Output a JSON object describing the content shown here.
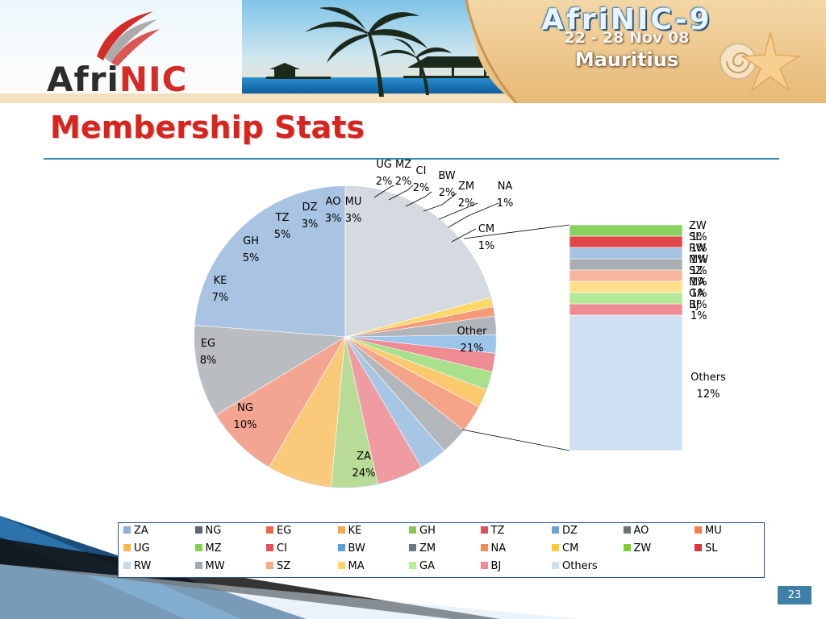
{
  "branding": {
    "logo_prefix": "Afri",
    "logo_suffix": "NIC",
    "conference_title": "AfriNIC-9",
    "conference_dates": "22 - 28 Nov 08",
    "conference_location": "Mauritius"
  },
  "page": {
    "title": "Membership Stats",
    "number": "23"
  },
  "colors": {
    "title": "#d9231d",
    "rule": "#2f8db0",
    "legend_border": "#2a4f9c",
    "page_number_bg": "#3f80a8"
  },
  "chart_data": {
    "type": "bar-of-pie",
    "title": "",
    "pie": {
      "slices": [
        {
          "category": "ZA",
          "label": "ZA",
          "value_text": "24%",
          "value": 24,
          "color": "#a8c4e2"
        },
        {
          "category": "NG",
          "label": "NG",
          "value_text": "10%",
          "value": 10,
          "color": "#b9bcc0"
        },
        {
          "category": "EG",
          "label": "EG",
          "value_text": "8%",
          "value": 8,
          "color": "#f4a592"
        },
        {
          "category": "KE",
          "label": "KE",
          "value_text": "7%",
          "value": 7,
          "color": "#fbc97a"
        },
        {
          "category": "GH",
          "label": "GH",
          "value_text": "5%",
          "value": 5,
          "color": "#b8dc98"
        },
        {
          "category": "TZ",
          "label": "TZ",
          "value_text": "5%",
          "value": 5,
          "color": "#ef9ba1"
        },
        {
          "category": "DZ",
          "label": "DZ",
          "value_text": "3%",
          "value": 3,
          "color": "#a7c6e6"
        },
        {
          "category": "AO",
          "label": "AO",
          "value_text": "3%",
          "value": 3,
          "color": "#b3b7bc"
        },
        {
          "category": "MU",
          "label": "MU",
          "value_text": "3%",
          "value": 3,
          "color": "#f5a487"
        },
        {
          "category": "UG",
          "label": "UG",
          "value_text": "2%",
          "value": 2,
          "color": "#fbc96e"
        },
        {
          "category": "MZ",
          "label": "MZ",
          "value_text": "2%",
          "value": 2,
          "color": "#a8e08c"
        },
        {
          "category": "CI",
          "label": "CI",
          "value_text": "2%",
          "value": 2,
          "color": "#ee8b93"
        },
        {
          "category": "BW",
          "label": "BW",
          "value_text": "2%",
          "value": 2,
          "color": "#9dc5ea"
        },
        {
          "category": "ZM",
          "label": "ZM",
          "value_text": "2%",
          "value": 2,
          "color": "#b0b5bb"
        },
        {
          "category": "NA",
          "label": "NA",
          "value_text": "1%",
          "value": 1,
          "color": "#f49a78"
        },
        {
          "category": "CM",
          "label": "CM",
          "value_text": "1%",
          "value": 1,
          "color": "#fdd767"
        },
        {
          "category": "Other",
          "label": "Other",
          "value_text": "21%",
          "value": 21,
          "color": "#d5dae0"
        }
      ]
    },
    "bar": {
      "segments": [
        {
          "category": "Others",
          "label": "Others",
          "value_text": "12%",
          "value": 12,
          "color": "#cfe0f2"
        },
        {
          "category": "BJ",
          "label": "BJ",
          "value_text": "1%",
          "value": 1,
          "color": "#ee8c92"
        },
        {
          "category": "GA",
          "label": "GA",
          "value_text": "1%",
          "value": 1,
          "color": "#b4ea96"
        },
        {
          "category": "MA",
          "label": "MA",
          "value_text": "1%",
          "value": 1,
          "color": "#ffe08a"
        },
        {
          "category": "SZ",
          "label": "SZ",
          "value_text": "1%",
          "value": 1,
          "color": "#f8b49d"
        },
        {
          "category": "MW",
          "label": "MW",
          "value_text": "1%",
          "value": 1,
          "color": "#a9aeb5"
        },
        {
          "category": "RW",
          "label": "RW",
          "value_text": "1%",
          "value": 1,
          "color": "#a5c2e2"
        },
        {
          "category": "SL",
          "label": "SL",
          "value_text": "1%",
          "value": 1,
          "color": "#e0464b"
        },
        {
          "category": "ZW",
          "label": "ZW",
          "value_text": "1%",
          "value": 1,
          "color": "#8ad160"
        }
      ]
    },
    "legend": {
      "placement": "bottom",
      "entries": [
        {
          "name": "ZA",
          "color": "#8fb0d6"
        },
        {
          "name": "NG",
          "color": "#5d6670"
        },
        {
          "name": "EG",
          "color": "#e96a4b"
        },
        {
          "name": "KE",
          "color": "#f5a94a"
        },
        {
          "name": "GH",
          "color": "#8dc45c"
        },
        {
          "name": "TZ",
          "color": "#d9535a"
        },
        {
          "name": "DZ",
          "color": "#6fa3d4"
        },
        {
          "name": "AO",
          "color": "#6c7378"
        },
        {
          "name": "MU",
          "color": "#f08050"
        },
        {
          "name": "UG",
          "color": "#fbb848"
        },
        {
          "name": "MZ",
          "color": "#7fd24a"
        },
        {
          "name": "CI",
          "color": "#e2505a"
        },
        {
          "name": "BW",
          "color": "#5ba0e0"
        },
        {
          "name": "ZM",
          "color": "#6e7680"
        },
        {
          "name": "NA",
          "color": "#f68b55"
        },
        {
          "name": "CM",
          "color": "#fdc830"
        },
        {
          "name": "ZW",
          "color": "#7fd035"
        },
        {
          "name": "SL",
          "color": "#dd3439"
        },
        {
          "name": "RW",
          "color": "#c9d8ea"
        },
        {
          "name": "MW",
          "color": "#a3a9b0"
        },
        {
          "name": "SZ",
          "color": "#f7a98c"
        },
        {
          "name": "MA",
          "color": "#ffd46c"
        },
        {
          "name": "GA",
          "color": "#b7ef9a"
        },
        {
          "name": "BJ",
          "color": "#ee8b93"
        },
        {
          "name": "Others",
          "color": "#cfe0f2"
        }
      ]
    }
  }
}
